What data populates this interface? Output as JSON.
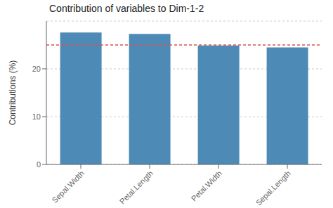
{
  "chart_data": {
    "type": "bar",
    "title": "Contribution of variables to Dim-1-2",
    "categories": [
      "Sepal.Width",
      "Petal.Length",
      "Petal.Width",
      "Sepal.Length"
    ],
    "values": [
      27.6,
      27.3,
      24.9,
      24.5
    ],
    "color": "#4d8ab5",
    "ylabel": "Contributions (%)",
    "ylim": [
      0,
      30
    ],
    "yticks": [
      0,
      10,
      20
    ],
    "grid": true,
    "ref_line": {
      "y": 25.0,
      "color": "#d9534f",
      "line_style": "dashed"
    }
  }
}
